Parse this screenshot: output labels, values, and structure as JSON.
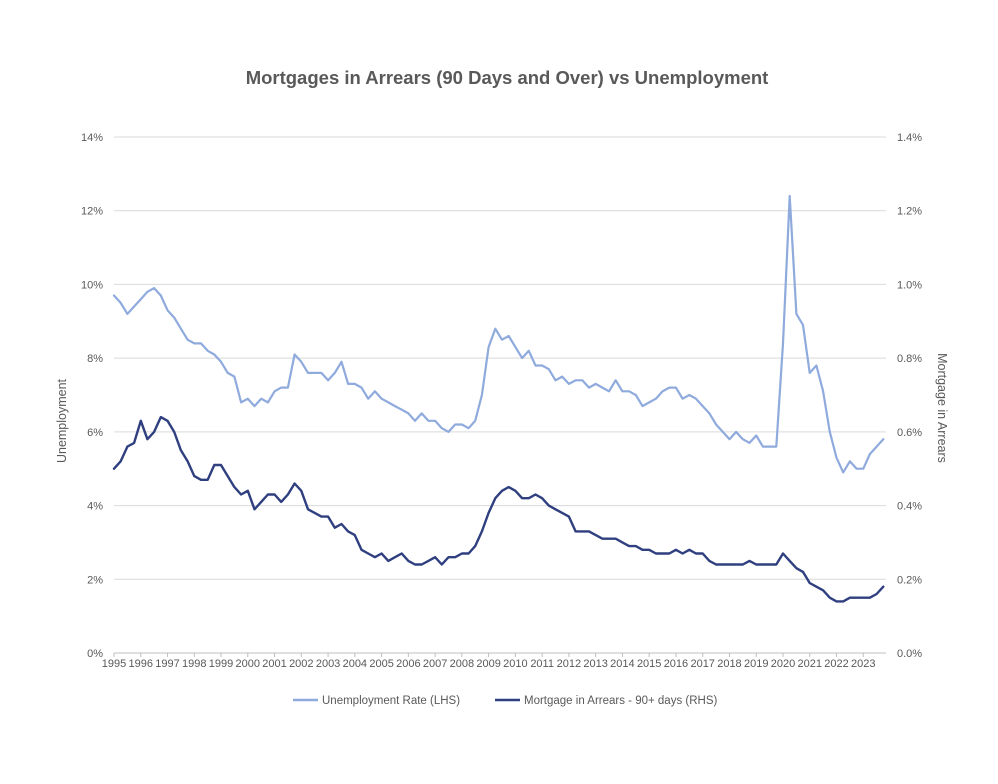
{
  "chart_data": {
    "type": "line",
    "title": "Mortgages in Arrears (90 Days and Over) vs Unemployment",
    "ylabel_left": "Unemployment",
    "ylabel_right": "Mortgage in Arrears",
    "ylim_left": [
      0,
      14
    ],
    "ylim_right": [
      0,
      1.4
    ],
    "yticks_left": [
      "0%",
      "2%",
      "4%",
      "6%",
      "8%",
      "10%",
      "12%",
      "14%"
    ],
    "yticks_right": [
      "0.0%",
      "0.2%",
      "0.4%",
      "0.6%",
      "0.8%",
      "1.0%",
      "1.2%",
      "1.4%"
    ],
    "xlim": [
      1995,
      2023.85
    ],
    "xticks": [
      "1995",
      "1996",
      "1997",
      "1998",
      "1999",
      "2000",
      "2001",
      "2002",
      "2003",
      "2004",
      "2005",
      "2006",
      "2007",
      "2008",
      "2009",
      "2010",
      "2011",
      "2012",
      "2013",
      "2014",
      "2015",
      "2016",
      "2017",
      "2018",
      "2019",
      "2020",
      "2021",
      "2022",
      "2023"
    ],
    "grid": true,
    "legend_position": "bottom",
    "series": [
      {
        "name": "Unemployment Rate (LHS)",
        "axis": "left",
        "color": "#8faadc",
        "x": [
          1995.0,
          1995.25,
          1995.5,
          1995.75,
          1996.0,
          1996.25,
          1996.5,
          1996.75,
          1997.0,
          1997.25,
          1997.5,
          1997.75,
          1998.0,
          1998.25,
          1998.5,
          1998.75,
          1999.0,
          1999.25,
          1999.5,
          1999.75,
          2000.0,
          2000.25,
          2000.5,
          2000.75,
          2001.0,
          2001.25,
          2001.5,
          2001.75,
          2002.0,
          2002.25,
          2002.5,
          2002.75,
          2003.0,
          2003.25,
          2003.5,
          2003.75,
          2004.0,
          2004.25,
          2004.5,
          2004.75,
          2005.0,
          2005.25,
          2005.5,
          2005.75,
          2006.0,
          2006.25,
          2006.5,
          2006.75,
          2007.0,
          2007.25,
          2007.5,
          2007.75,
          2008.0,
          2008.25,
          2008.5,
          2008.75,
          2009.0,
          2009.25,
          2009.5,
          2009.75,
          2010.0,
          2010.25,
          2010.5,
          2010.75,
          2011.0,
          2011.25,
          2011.5,
          2011.75,
          2012.0,
          2012.25,
          2012.5,
          2012.75,
          2013.0,
          2013.25,
          2013.5,
          2013.75,
          2014.0,
          2014.25,
          2014.5,
          2014.75,
          2015.0,
          2015.25,
          2015.5,
          2015.75,
          2016.0,
          2016.25,
          2016.5,
          2016.75,
          2017.0,
          2017.25,
          2017.5,
          2017.75,
          2018.0,
          2018.25,
          2018.5,
          2018.75,
          2019.0,
          2019.25,
          2019.5,
          2019.75,
          2020.0,
          2020.25,
          2020.5,
          2020.75,
          2021.0,
          2021.25,
          2021.5,
          2021.75,
          2022.0,
          2022.25,
          2022.5,
          2022.75,
          2023.0,
          2023.25,
          2023.5,
          2023.75
        ],
        "values": [
          9.7,
          9.5,
          9.2,
          9.4,
          9.6,
          9.8,
          9.9,
          9.7,
          9.3,
          9.1,
          8.8,
          8.5,
          8.4,
          8.4,
          8.2,
          8.1,
          7.9,
          7.6,
          7.5,
          6.8,
          6.9,
          6.7,
          6.9,
          6.8,
          7.1,
          7.2,
          7.2,
          8.1,
          7.9,
          7.6,
          7.6,
          7.6,
          7.4,
          7.6,
          7.9,
          7.3,
          7.3,
          7.2,
          6.9,
          7.1,
          6.9,
          6.8,
          6.7,
          6.6,
          6.5,
          6.3,
          6.5,
          6.3,
          6.3,
          6.1,
          6.0,
          6.2,
          6.2,
          6.1,
          6.3,
          7.0,
          8.3,
          8.8,
          8.5,
          8.6,
          8.3,
          8.0,
          8.2,
          7.8,
          7.8,
          7.7,
          7.4,
          7.5,
          7.3,
          7.4,
          7.4,
          7.2,
          7.3,
          7.2,
          7.1,
          7.4,
          7.1,
          7.1,
          7.0,
          6.7,
          6.8,
          6.9,
          7.1,
          7.2,
          7.2,
          6.9,
          7.0,
          6.9,
          6.7,
          6.5,
          6.2,
          6.0,
          5.8,
          6.0,
          5.8,
          5.7,
          5.9,
          5.6,
          5.6,
          5.6,
          8.4,
          12.4,
          9.2,
          8.9,
          7.6,
          7.8,
          7.1,
          6.0,
          5.3,
          4.9,
          5.2,
          5.0,
          5.0,
          5.4,
          5.6,
          5.8
        ]
      },
      {
        "name": "Mortgage in Arrears - 90+ days (RHS)",
        "axis": "right",
        "color": "#2f3f7f",
        "x": [
          1995.0,
          1995.25,
          1995.5,
          1995.75,
          1996.0,
          1996.25,
          1996.5,
          1996.75,
          1997.0,
          1997.25,
          1997.5,
          1997.75,
          1998.0,
          1998.25,
          1998.5,
          1998.75,
          1999.0,
          1999.25,
          1999.5,
          1999.75,
          2000.0,
          2000.25,
          2000.5,
          2000.75,
          2001.0,
          2001.25,
          2001.5,
          2001.75,
          2002.0,
          2002.25,
          2002.5,
          2002.75,
          2003.0,
          2003.25,
          2003.5,
          2003.75,
          2004.0,
          2004.25,
          2004.5,
          2004.75,
          2005.0,
          2005.25,
          2005.5,
          2005.75,
          2006.0,
          2006.25,
          2006.5,
          2006.75,
          2007.0,
          2007.25,
          2007.5,
          2007.75,
          2008.0,
          2008.25,
          2008.5,
          2008.75,
          2009.0,
          2009.25,
          2009.5,
          2009.75,
          2010.0,
          2010.25,
          2010.5,
          2010.75,
          2011.0,
          2011.25,
          2011.5,
          2011.75,
          2012.0,
          2012.25,
          2012.5,
          2012.75,
          2013.0,
          2013.25,
          2013.5,
          2013.75,
          2014.0,
          2014.25,
          2014.5,
          2014.75,
          2015.0,
          2015.25,
          2015.5,
          2015.75,
          2016.0,
          2016.25,
          2016.5,
          2016.75,
          2017.0,
          2017.25,
          2017.5,
          2017.75,
          2018.0,
          2018.25,
          2018.5,
          2018.75,
          2019.0,
          2019.25,
          2019.5,
          2019.75,
          2020.0,
          2020.25,
          2020.5,
          2020.75,
          2021.0,
          2021.25,
          2021.5,
          2021.75,
          2022.0,
          2022.25,
          2022.5,
          2022.75,
          2023.0,
          2023.25,
          2023.5,
          2023.75
        ],
        "values": [
          0.5,
          0.52,
          0.56,
          0.57,
          0.63,
          0.58,
          0.6,
          0.64,
          0.63,
          0.6,
          0.55,
          0.52,
          0.48,
          0.47,
          0.47,
          0.51,
          0.51,
          0.48,
          0.45,
          0.43,
          0.44,
          0.39,
          0.41,
          0.43,
          0.43,
          0.41,
          0.43,
          0.46,
          0.44,
          0.39,
          0.38,
          0.37,
          0.37,
          0.34,
          0.35,
          0.33,
          0.32,
          0.28,
          0.27,
          0.26,
          0.27,
          0.25,
          0.26,
          0.27,
          0.25,
          0.24,
          0.24,
          0.25,
          0.26,
          0.24,
          0.26,
          0.26,
          0.27,
          0.27,
          0.29,
          0.33,
          0.38,
          0.42,
          0.44,
          0.45,
          0.44,
          0.42,
          0.42,
          0.43,
          0.42,
          0.4,
          0.39,
          0.38,
          0.37,
          0.33,
          0.33,
          0.33,
          0.32,
          0.31,
          0.31,
          0.31,
          0.3,
          0.29,
          0.29,
          0.28,
          0.28,
          0.27,
          0.27,
          0.27,
          0.28,
          0.27,
          0.28,
          0.27,
          0.27,
          0.25,
          0.24,
          0.24,
          0.24,
          0.24,
          0.24,
          0.25,
          0.24,
          0.24,
          0.24,
          0.24,
          0.27,
          0.25,
          0.23,
          0.22,
          0.19,
          0.18,
          0.17,
          0.15,
          0.14,
          0.14,
          0.15,
          0.15,
          0.15,
          0.15,
          0.16,
          0.18
        ]
      }
    ]
  }
}
